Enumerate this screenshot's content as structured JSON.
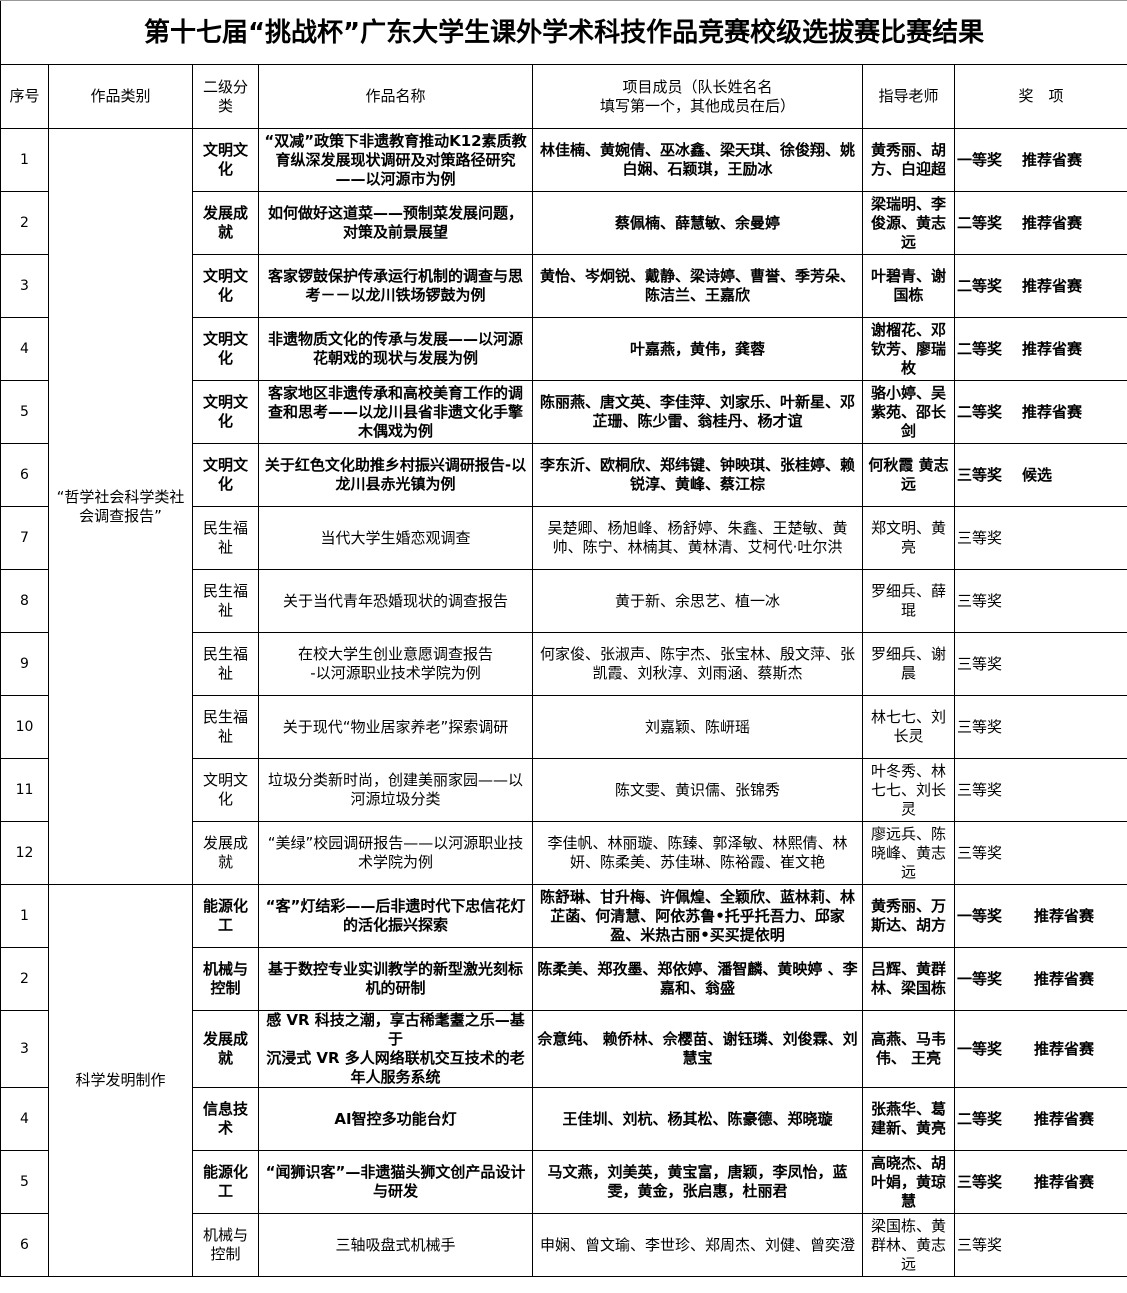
{
  "title": "第十七届“挑战杯”广东大学生课外学术科技作品竞赛校级选拔赛比赛结果",
  "headers": [
    "序号",
    "作品类别",
    "二级分类",
    "作品名称",
    "项目成员（队长姓名名\n填写第一个，其他成员在后）",
    "指导老师",
    "奖　项"
  ],
  "groups": [
    {
      "category": "“哲学社会科学类社会调查报告”",
      "rows": [
        {
          "no": "1",
          "sub": "文明文化",
          "name": "“双减”政策下非遗教育推动K12素质教育纵深发展现状调研及对策路径研究——以河源市为例",
          "members": "林佳楠、黄婉倩、巫冰鑫、梁天琪、徐俊翔、姚白娴、石颖琪，王励冰",
          "advisor": "黄秀丽、胡方、白迎超",
          "award": "一等奖",
          "recommend": "推荐省赛",
          "bold": true
        },
        {
          "no": "2",
          "sub": "发展成就",
          "name": "如何做好这道菜——预制菜发展问题，对策及前景展望",
          "members": "蔡佩楠、薛慧敏、余曼婷",
          "advisor": "梁瑞明、李俊源、黄志远",
          "award": "二等奖",
          "recommend": "推荐省赛",
          "bold": true
        },
        {
          "no": "3",
          "sub": "文明文化",
          "name": "客家锣鼓保护传承运行机制的调查与思考－－以龙川铁场锣鼓为例",
          "members": "黄怡、岑炯锐、戴静、梁诗婷、曹誉、季芳朵、陈洁兰、王嘉欣",
          "advisor": "叶碧青、谢国栋",
          "award": "二等奖",
          "recommend": "推荐省赛",
          "bold": true
        },
        {
          "no": "4",
          "sub": "文明文化",
          "name": "非遗物质文化的传承与发展——以河源花朝戏的现状与发展为例",
          "members": "叶嘉燕，黄伟，龚蓉",
          "advisor": "谢榴花、邓钦芳、廖瑞枚",
          "award": "二等奖",
          "recommend": "推荐省赛",
          "bold": true
        },
        {
          "no": "5",
          "sub": "文明文化",
          "name": "客家地区非遗传承和高校美育工作的调查和思考——以龙川县省非遗文化手擎木偶戏为例",
          "members": "陈丽燕、唐文英、李佳萍、刘家乐、叶新星、邓芷珊、陈少雷、翁桂丹、杨才谊",
          "advisor": "骆小婷、吴紫苑、邵长剑",
          "award": "二等奖",
          "recommend": "推荐省赛",
          "bold": true
        },
        {
          "no": "6",
          "sub": "文明文化",
          "name": "关于红色文化助推乡村振兴调研报告-以龙川县赤光镇为例",
          "members": "李东沂、欧桐欣、郑纬键、钟映琪、张桂婷、赖锐淳、黄峰、蔡江棕",
          "advisor": "何秋霞 黄志远",
          "award": "三等奖",
          "recommend": "候选",
          "bold": true
        },
        {
          "no": "7",
          "sub": "民生福祉",
          "name": "当代大学生婚恋观调查",
          "members": "吴楚卿、杨旭峰、杨舒婷、朱鑫、王楚敏、黄帅、陈宁、林楠其、黄林清、艾柯代·吐尔洪",
          "advisor": "郑文明、黄亮",
          "award": "三等奖",
          "recommend": "",
          "bold": false
        },
        {
          "no": "8",
          "sub": "民生福祉",
          "name": "关于当代青年恐婚现状的调查报告",
          "members": "黄于新、余思艺、植一冰",
          "advisor": "罗细兵、薛琨",
          "award": "三等奖",
          "recommend": "",
          "bold": false
        },
        {
          "no": "9",
          "sub": "民生福祉",
          "name": "在校大学生创业意愿调查报告\n-以河源职业技术学院为例",
          "members": "何家俊、张淑声、陈宇杰、张宝林、殷文萍、张凯霞、刘秋淳、刘雨涵、蔡斯杰",
          "advisor": "罗细兵、谢晨",
          "award": "三等奖",
          "recommend": "",
          "bold": false
        },
        {
          "no": "10",
          "sub": "民生福祉",
          "name": "关于现代“物业居家养老”探索调研",
          "members": "刘嘉颖、陈岍瑶",
          "advisor": "林七七、刘长灵",
          "award": "三等奖",
          "recommend": "",
          "bold": false
        },
        {
          "no": "11",
          "sub": "文明文化",
          "name": "垃圾分类新时尚，创建美丽家园——以河源垃圾分类",
          "members": "陈文雯、黄识儒、张锦秀",
          "advisor": "叶冬秀、林七七、刘长灵",
          "award": "三等奖",
          "recommend": "",
          "bold": false
        },
        {
          "no": "12",
          "sub": "发展成就",
          "name": "“美绿”校园调研报告——以河源职业技术学院为例",
          "members": "李佳帆、林丽璇、陈臻、郭泽敏、林熙倩、林妍、陈柔美、苏佳琳、陈裕霞、崔文艳",
          "advisor": "廖远兵、陈晓峰、黄志远",
          "award": "三等奖",
          "recommend": "",
          "bold": false
        }
      ]
    },
    {
      "category": "科学发明制作",
      "rows": [
        {
          "no": "1",
          "sub": "能源化工",
          "name": "“客”灯结彩——后非遗时代下忠信花灯的活化振兴探索",
          "members": "陈舒琳、甘升梅、许佩煌、全颖欣、蓝林莉、林芷菡、何清慧、阿依苏鲁•托乎托吾力、邱家盈、米热古丽•买买提依明",
          "advisor": "黄秀丽、万斯达、胡方",
          "award": "一等奖",
          "recommend": "推荐省赛",
          "bold": true
        },
        {
          "no": "2",
          "sub": "机械与控制",
          "name": "基于数控专业实训教学的新型激光刻标机的研制",
          "members": "陈柔美、郑孜墨、郑依婷、潘智麟、黄映婷 、李嘉和、翁盛",
          "advisor": "吕辉、黄群林、梁国栋",
          "award": "一等奖",
          "recommend": "推荐省赛",
          "bold": true
        },
        {
          "no": "3",
          "sub": "发展成就",
          "name": "感 VR 科技之潮，享古稀耄耋之乐—基于\n沉浸式 VR 多人网络联机交互技术的老年人服务系统",
          "members": "佘意纯、 赖侨林、佘樱苗、谢钰璘、刘俊霖、刘慧宝",
          "advisor": "高燕、马韦伟、 王亮",
          "award": "一等奖",
          "recommend": "推荐省赛",
          "bold": true
        },
        {
          "no": "4",
          "sub": "信息技术",
          "name": "AI智控多功能台灯",
          "members": "王佳圳、刘杭、杨其松、陈豪德、郑晓璇",
          "advisor": "张燕华、葛建新、黄亮",
          "award": "二等奖",
          "recommend": "推荐省赛",
          "bold": true
        },
        {
          "no": "5",
          "sub": "能源化工",
          "name": "“闻狮识客”—非遗猫头狮文创产品设计与研发",
          "members": "马文燕，刘美英，黄宝富，唐颖，李凤怡，蓝雯，黄金，张启惠，杜丽君",
          "advisor": "高晓杰、胡叶娟，黄琼慧",
          "award": "三等奖",
          "recommend": "推荐省赛",
          "bold": true
        },
        {
          "no": "6",
          "sub": "机械与控制",
          "name": "三轴吸盘式机械手",
          "members": "申娴、曾文瑜、李世珍、郑周杰、刘健、曾奕澄",
          "advisor": "梁国栋、黄群林、黄志远",
          "award": "三等奖",
          "recommend": "",
          "bold": false
        }
      ]
    }
  ]
}
